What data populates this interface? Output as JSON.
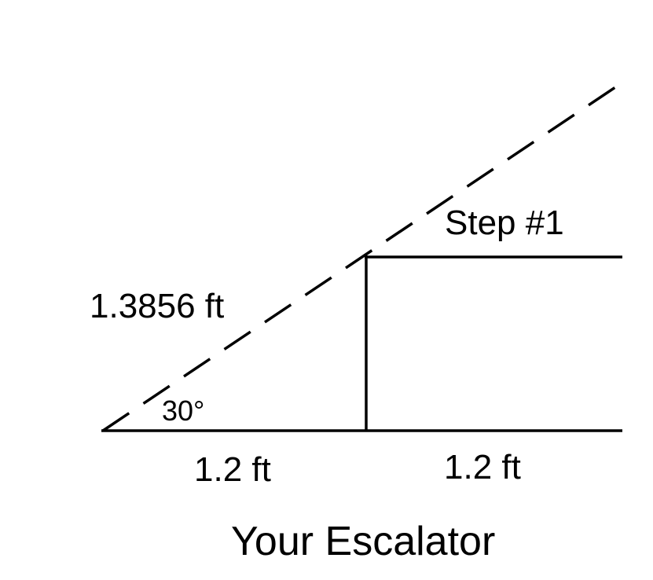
{
  "labels": {
    "hypotenuse": "1.3856 ft",
    "step": "Step #1",
    "angle": "30°",
    "run_left": "1.2 ft",
    "run_right": "1.2 ft",
    "title": "Your Escalator"
  },
  "colors": {
    "stroke": "#000000",
    "background": "#ffffff"
  }
}
